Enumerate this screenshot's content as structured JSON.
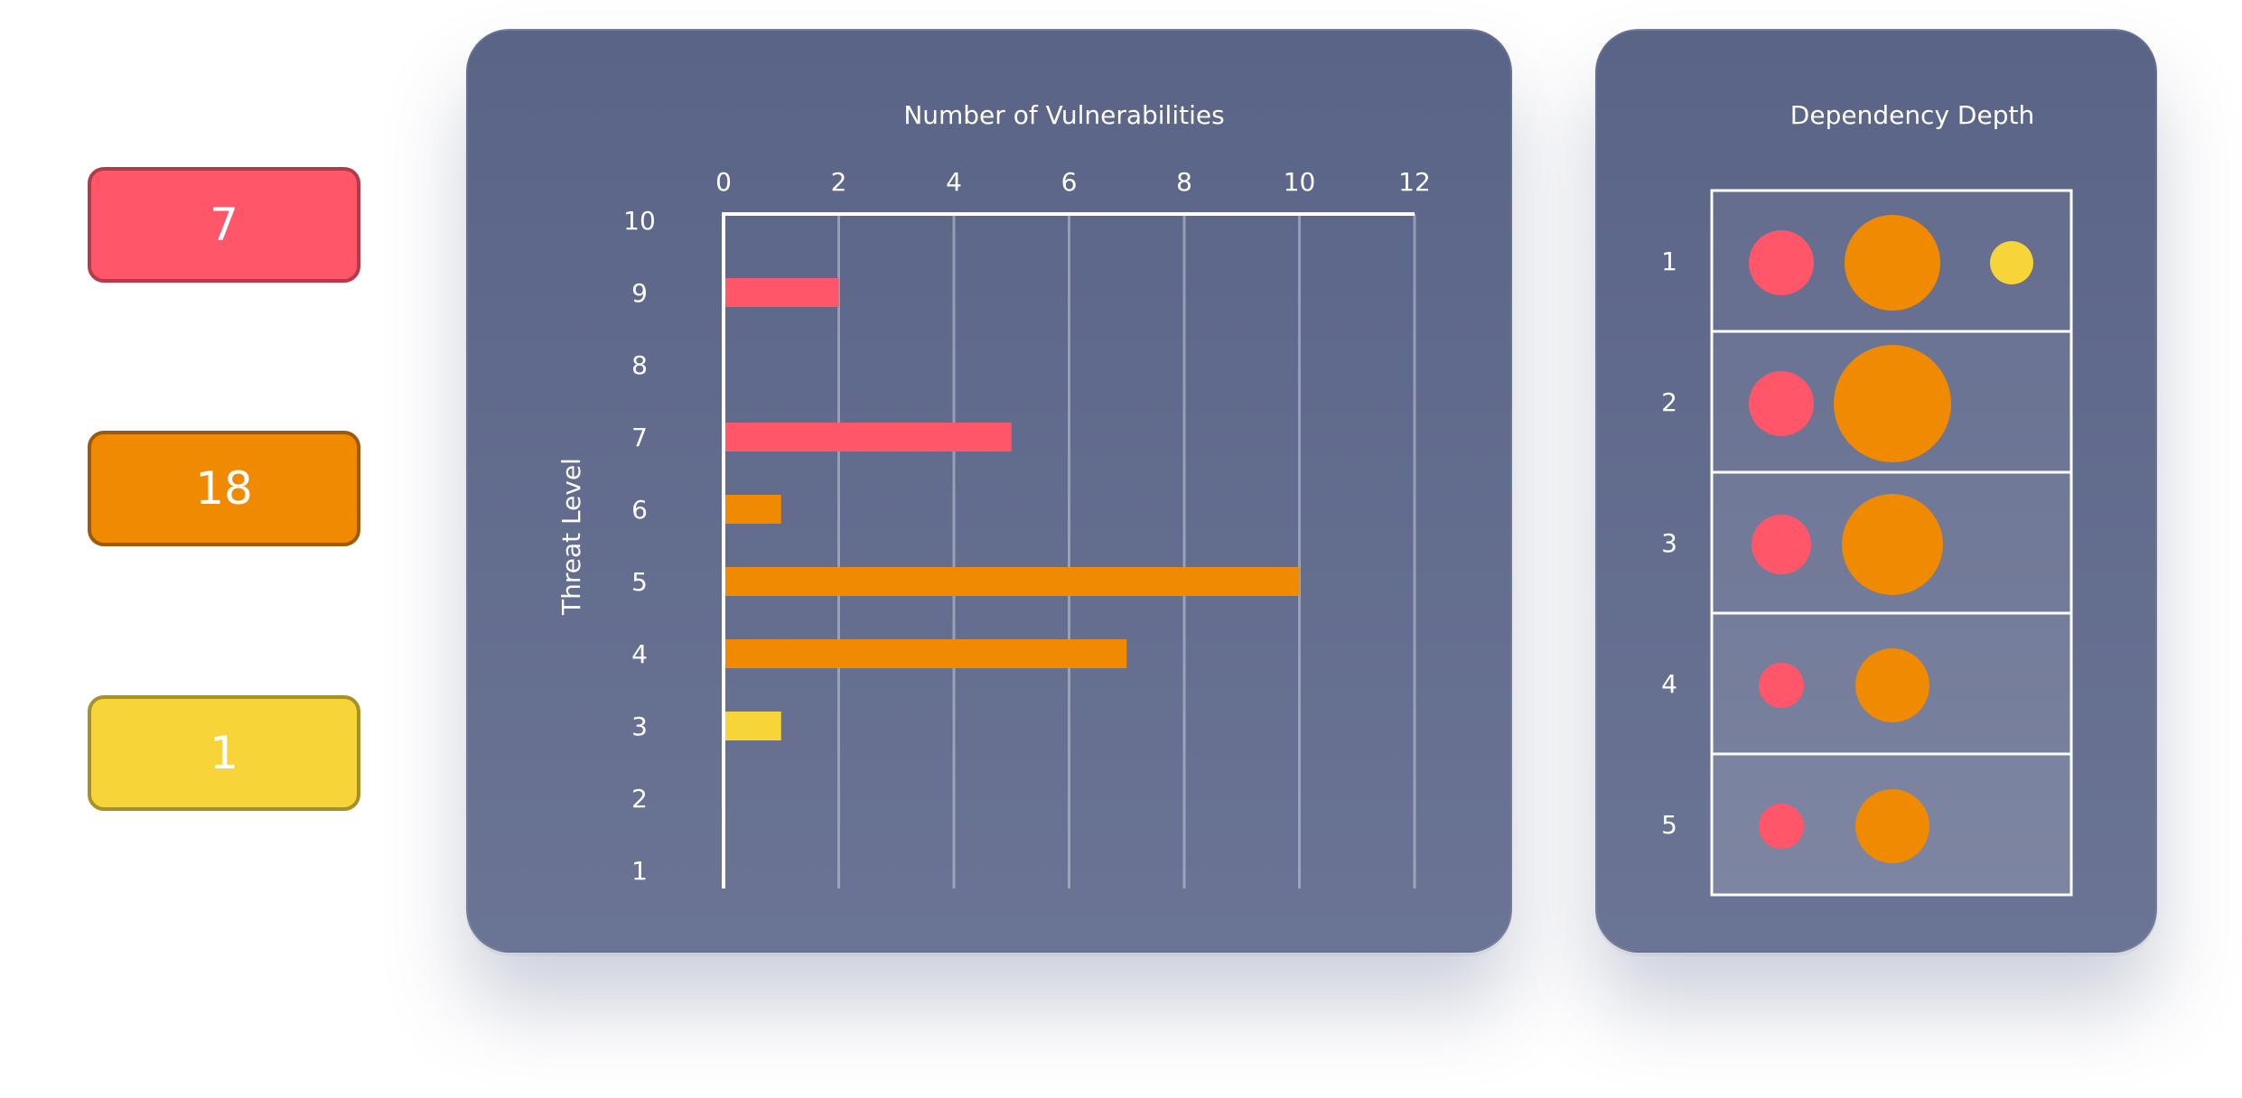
{
  "badges": [
    {
      "value": "7",
      "fill": "#ff566a",
      "border": "#b33a48"
    },
    {
      "value": "18",
      "fill": "#f08a00",
      "border": "#9e5a0a"
    },
    {
      "value": "1",
      "fill": "#f7d538",
      "border": "#a6902a"
    }
  ],
  "colors": {
    "red": "#ff566a",
    "orange": "#f08a00",
    "yellow": "#f7d538"
  },
  "chart_data": [
    {
      "type": "bar",
      "orientation": "horizontal",
      "title": "Number of Vulnerabilities",
      "xlabel": "Number of Vulnerabilities",
      "ylabel": "Threat Level",
      "xlim": [
        0,
        12
      ],
      "xticks": [
        "0",
        "2",
        "4",
        "6",
        "8",
        "10",
        "12"
      ],
      "categories": [
        "10",
        "9",
        "8",
        "7",
        "6",
        "5",
        "4",
        "3",
        "2",
        "1"
      ],
      "values": [
        0,
        2,
        0,
        5,
        1,
        10,
        7,
        1,
        0,
        0
      ],
      "bar_colors": [
        "#ff566a",
        "#ff566a",
        "#ff566a",
        "#ff566a",
        "#f08a00",
        "#f08a00",
        "#f08a00",
        "#f7d538",
        "#f7d538",
        "#f7d538"
      ],
      "grid": true
    },
    {
      "type": "scatter",
      "subtype": "bubble",
      "title": "Dependency Depth",
      "categories": [
        "1",
        "2",
        "3",
        "4",
        "5"
      ],
      "series": [
        {
          "name": "red",
          "color": "#ff566a",
          "sizes": [
            36,
            36,
            33,
            25,
            25
          ]
        },
        {
          "name": "orange",
          "color": "#f08a00",
          "sizes": [
            53,
            65,
            56,
            41,
            41
          ]
        },
        {
          "name": "yellow",
          "color": "#f7d538",
          "sizes": [
            24,
            0,
            0,
            0,
            0
          ]
        }
      ]
    }
  ]
}
